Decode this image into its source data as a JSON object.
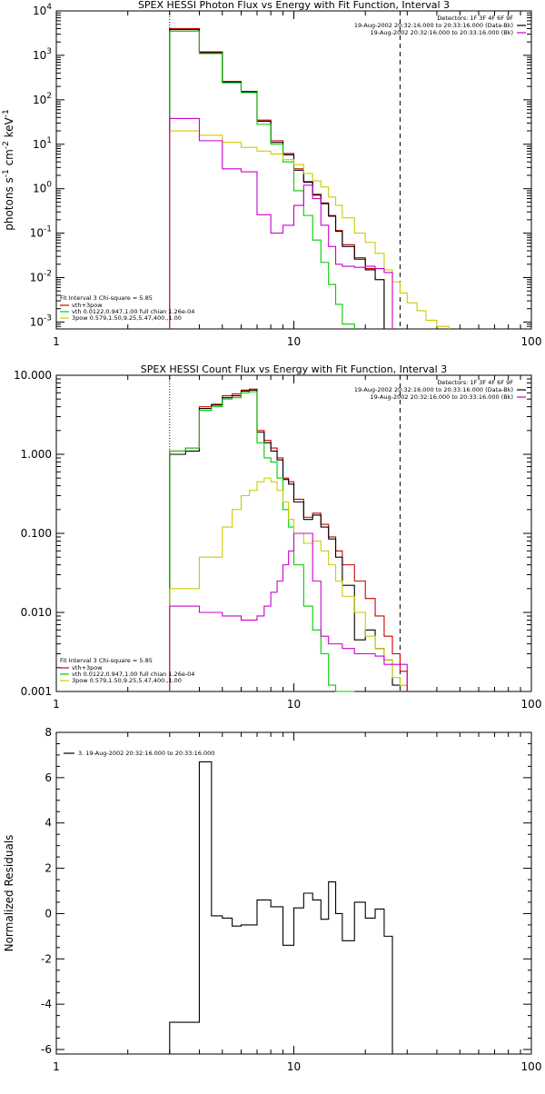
{
  "chart_data": [
    {
      "type": "line",
      "title": "SPEX HESSI Photon Flux vs Energy with Fit Function, Interval 3",
      "xlabel": "",
      "ylabel_parts": [
        "photons s",
        "-1",
        " cm",
        "-2",
        " keV",
        "-1"
      ],
      "xscale": "log",
      "yscale": "log",
      "xlim": [
        1,
        100
      ],
      "ylim": [
        0.0007,
        10000
      ],
      "x_ticks": [
        1,
        10,
        100
      ],
      "x_tick_labels": [
        "1",
        "10",
        "100"
      ],
      "y_ticks": [
        0.001,
        0.01,
        0.1,
        1,
        10,
        100,
        1000,
        10000
      ],
      "y_tick_labels": [
        [
          "10",
          "-3"
        ],
        [
          "10",
          "-2"
        ],
        [
          "10",
          "-1"
        ],
        [
          "10",
          "0"
        ],
        [
          "10",
          "1"
        ],
        [
          "10",
          "2"
        ],
        [
          "10",
          "3"
        ],
        [
          "10",
          "4"
        ]
      ],
      "vlines": [
        {
          "x": 3,
          "style": "dotted"
        },
        {
          "x": 28,
          "style": "dashed"
        }
      ],
      "header_lines": [
        {
          "text": "Detectors: 1F 3F 4F 6F 9F",
          "color": ""
        },
        {
          "text": "19-Aug-2002 20:32:16.000 to 20:33:16.000 (Data-Bk)",
          "color": "#000000"
        },
        {
          "text": "19-Aug-2002 20:32:16.000 to 20:33:16.000 (Bk)",
          "color": "#cc00cc"
        }
      ],
      "legend_title": "Fit Interval 3   Chi-square = 5.85",
      "legend": [
        {
          "text": "vth+3pow",
          "color": "#cc0000"
        },
        {
          "text": "vth 0.0122,0.947,1.00  full chian 1.26e-04",
          "color": "#00cc00"
        },
        {
          "text": "3pow 0.579,1.50,9.25,5.47,400.,1.00",
          "color": "#cccc00"
        }
      ],
      "edges": [
        3,
        4,
        5,
        6,
        7,
        8,
        9,
        10,
        11,
        12,
        13,
        14,
        15,
        16,
        18,
        20,
        22,
        24,
        26,
        28,
        30,
        33,
        36,
        40,
        45
      ],
      "series": [
        {
          "color": "#cc0000",
          "values": [
            4000,
            1200,
            260,
            155,
            35,
            12,
            6.2,
            2.8,
            1.45,
            0.75,
            0.48,
            0.25,
            0.115,
            0.055,
            0.028,
            0.016,
            0.009,
            null,
            null,
            null,
            null,
            null,
            null,
            null
          ]
        },
        {
          "color": "#000000",
          "values": [
            3800,
            1150,
            250,
            150,
            33,
            11,
            5.8,
            2.6,
            1.4,
            0.72,
            0.46,
            0.24,
            0.11,
            0.05,
            0.026,
            0.015,
            0.009,
            null,
            null,
            null,
            null,
            null,
            null,
            null
          ]
        },
        {
          "color": "#00cc00",
          "values": [
            3500,
            1100,
            240,
            145,
            28,
            10,
            4.0,
            0.9,
            0.25,
            0.07,
            0.022,
            0.007,
            0.0025,
            0.0009,
            null,
            null,
            null,
            null,
            null,
            null,
            null,
            null,
            null,
            null
          ]
        },
        {
          "color": "#cccc00",
          "values": [
            20,
            16,
            11,
            8.5,
            7,
            6,
            4.5,
            3.5,
            2.2,
            1.5,
            1.1,
            0.65,
            0.42,
            0.22,
            0.1,
            0.062,
            0.035,
            0.015,
            0.008,
            0.0045,
            0.0027,
            0.0018,
            0.0011,
            0.0008
          ]
        },
        {
          "color": "#cc00cc",
          "values": [
            38,
            12,
            2.8,
            2.4,
            0.26,
            0.1,
            0.15,
            0.42,
            1.2,
            0.6,
            0.15,
            0.05,
            0.02,
            0.018,
            0.017,
            0.018,
            0.016,
            0.013,
            null,
            null,
            null,
            null,
            null,
            null
          ]
        }
      ]
    },
    {
      "type": "line",
      "title": "SPEX HESSI Count Flux vs Energy with Fit Function, Interval 3",
      "xlabel": "",
      "ylabel_parts": [],
      "xscale": "log",
      "yscale": "log",
      "xlim": [
        1,
        100
      ],
      "ylim": [
        0.001,
        10
      ],
      "x_ticks": [
        1,
        10,
        100
      ],
      "x_tick_labels": [
        "1",
        "10",
        "100"
      ],
      "y_ticks": [
        0.001,
        0.01,
        0.1,
        1,
        10
      ],
      "y_tick_labels": [
        [
          "0.001",
          ""
        ],
        [
          "0.010",
          ""
        ],
        [
          "0.100",
          ""
        ],
        [
          "1.000",
          ""
        ],
        [
          "10.000",
          ""
        ]
      ],
      "vlines": [
        {
          "x": 3,
          "style": "dotted"
        },
        {
          "x": 28,
          "style": "dashed"
        }
      ],
      "header_lines": [
        {
          "text": "Detectors: 1F 3F 4F 6F 9F",
          "color": ""
        },
        {
          "text": "19-Aug-2002 20:32:16.000 to 20:33:16.000 (Data-Bk)",
          "color": "#000000"
        },
        {
          "text": "19-Aug-2002 20:32:16.000 to 20:33:16.000 (Bk)",
          "color": "#cc00cc"
        }
      ],
      "legend_title": "Fit Interval 3   Chi-square = 5.85",
      "legend": [
        {
          "text": "vth+3pow",
          "color": "#cc0000"
        },
        {
          "text": "vth 0.0122,0.947,1.00  full chian 1.26e-04",
          "color": "#00cc00"
        },
        {
          "text": "3pow 0.579,1.50,9.25,5.47,400.,1.00",
          "color": "#cccc00"
        }
      ],
      "edges": [
        3,
        3.5,
        4,
        4.5,
        5,
        5.5,
        6,
        6.5,
        7,
        7.5,
        8,
        8.5,
        9,
        9.5,
        10,
        11,
        12,
        13,
        14,
        15,
        16,
        18,
        20,
        22,
        24,
        26,
        28,
        30
      ],
      "series": [
        {
          "color": "#cc0000",
          "values": [
            1.1,
            1.2,
            4.0,
            4.3,
            5.5,
            5.8,
            6.5,
            6.7,
            2.0,
            1.5,
            1.2,
            0.9,
            0.5,
            0.45,
            0.27,
            0.16,
            0.18,
            0.13,
            0.09,
            0.06,
            0.04,
            0.025,
            0.015,
            0.009,
            0.005,
            0.003,
            0.0018
          ]
        },
        {
          "color": "#000000",
          "values": [
            1.0,
            1.1,
            3.8,
            4.2,
            5.2,
            5.5,
            6.3,
            6.5,
            1.9,
            1.4,
            1.1,
            0.85,
            0.48,
            0.42,
            0.25,
            0.15,
            0.17,
            0.12,
            0.085,
            0.05,
            0.022,
            0.0045,
            0.006,
            0.0035,
            0.0025,
            0.0012,
            0.0012
          ]
        },
        {
          "color": "#00cc00",
          "values": [
            1.1,
            1.2,
            3.6,
            4.0,
            5.0,
            5.2,
            6.0,
            6.2,
            1.4,
            0.9,
            0.8,
            0.5,
            0.2,
            0.12,
            0.04,
            0.012,
            0.006,
            0.003,
            0.0012,
            0.001,
            0.0006,
            null,
            null,
            null,
            null,
            null,
            null
          ]
        },
        {
          "color": "#cccc00",
          "values": [
            0.02,
            0.02,
            0.05,
            0.05,
            0.12,
            0.2,
            0.3,
            0.35,
            0.45,
            0.5,
            0.45,
            0.35,
            0.25,
            0.15,
            0.1,
            0.075,
            0.08,
            0.06,
            0.04,
            0.025,
            0.016,
            0.01,
            0.005,
            0.0035,
            0.0025,
            0.0015,
            0.0012
          ]
        },
        {
          "color": "#cc00cc",
          "values": [
            0.012,
            0.012,
            0.01,
            0.01,
            0.009,
            0.009,
            0.008,
            0.008,
            0.009,
            0.012,
            0.018,
            0.025,
            0.04,
            0.06,
            0.1,
            0.1,
            0.025,
            0.005,
            0.004,
            0.004,
            0.0035,
            0.003,
            0.003,
            0.0028,
            0.0022,
            0.0022,
            0.0022
          ]
        }
      ]
    },
    {
      "type": "line",
      "title": "",
      "xlabel": "",
      "ylabel_parts": [
        "Normalized Residuals"
      ],
      "xscale": "log",
      "yscale": "linear",
      "xlim": [
        1,
        100
      ],
      "ylim": [
        -6.2,
        8
      ],
      "x_ticks": [
        1,
        10,
        100
      ],
      "x_tick_labels": [
        "1",
        "10",
        "100"
      ],
      "y_ticks": [
        -6,
        -4,
        -2,
        0,
        2,
        4,
        6,
        8
      ],
      "y_tick_labels": [
        [
          "-6",
          ""
        ],
        [
          "-4",
          ""
        ],
        [
          "-2",
          ""
        ],
        [
          "0",
          ""
        ],
        [
          "2",
          ""
        ],
        [
          "4",
          ""
        ],
        [
          "6",
          ""
        ],
        [
          "8",
          ""
        ]
      ],
      "vlines": [],
      "header_lines": [],
      "legend_title": "",
      "legend": [
        {
          "text": "3. 19-Aug-2002 20:32:16.000 to 20:33:16.000",
          "color": "#000000"
        }
      ],
      "edges": [
        3,
        4,
        4.5,
        5,
        5.5,
        6,
        7,
        8,
        9,
        10,
        11,
        12,
        13,
        14,
        15,
        16,
        18,
        20,
        22,
        24,
        26,
        28
      ],
      "series": [
        {
          "color": "#000000",
          "values": [
            -4.8,
            6.7,
            -0.1,
            -0.2,
            -0.55,
            -0.5,
            0.6,
            0.3,
            -1.4,
            0.25,
            0.9,
            0.6,
            -0.25,
            1.4,
            0.0,
            -1.2,
            0.5,
            -0.2,
            0.2,
            -1.0,
            -6.2
          ]
        }
      ]
    }
  ]
}
